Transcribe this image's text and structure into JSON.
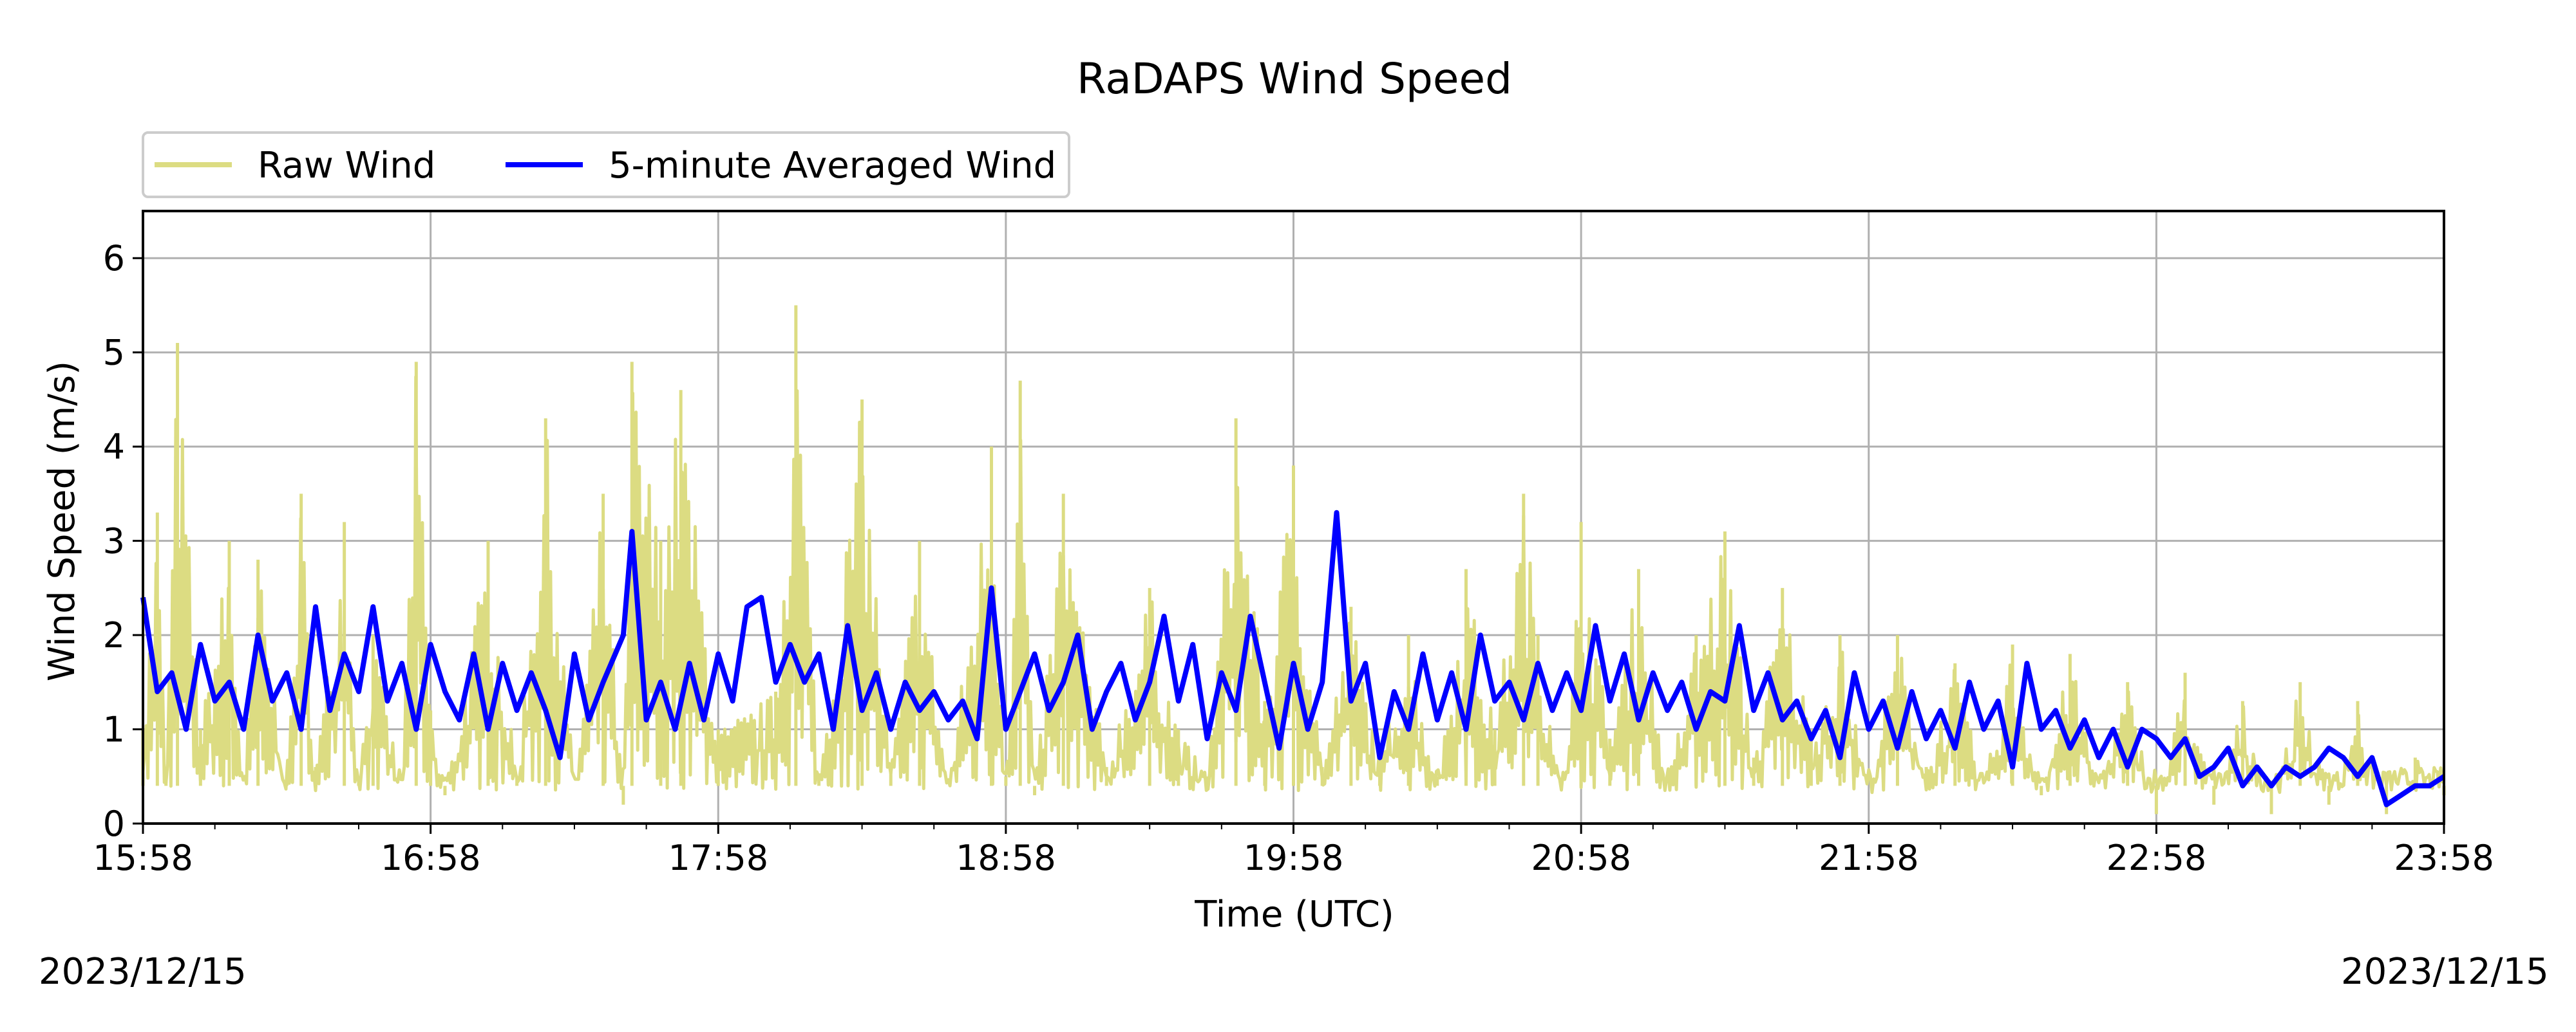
{
  "chart_data": {
    "type": "line",
    "title": "RaDAPS Wind Speed",
    "xlabel": "Time (UTC)",
    "ylabel": "Wind Speed (m/s)",
    "x_tick_labels": [
      "15:58",
      "16:58",
      "17:58",
      "18:58",
      "19:58",
      "20:58",
      "21:58",
      "22:58",
      "23:58"
    ],
    "y_ticks": [
      0,
      1,
      2,
      3,
      4,
      5,
      6
    ],
    "ylim": [
      0,
      6.5
    ],
    "x_range_hours": [
      0,
      8
    ],
    "grid": true,
    "legend_position": "top-left",
    "series": [
      {
        "name": "Raw Wind",
        "color": "#dcdc82",
        "points": [
          [
            0,
            1.0
          ],
          [
            0.05,
            3.3
          ],
          [
            0.08,
            0.5
          ],
          [
            0.12,
            5.1
          ],
          [
            0.2,
            1.0
          ],
          [
            0.3,
            3.0
          ],
          [
            0.35,
            0.4
          ],
          [
            0.4,
            2.8
          ],
          [
            0.5,
            0.5
          ],
          [
            0.55,
            3.5
          ],
          [
            0.6,
            0.6
          ],
          [
            0.7,
            3.2
          ],
          [
            0.75,
            0.5
          ],
          [
            0.8,
            2.0
          ],
          [
            0.9,
            0.4
          ],
          [
            0.95,
            4.9
          ],
          [
            1.0,
            1.2
          ],
          [
            1.05,
            0.3
          ],
          [
            1.2,
            3.0
          ],
          [
            1.3,
            0.5
          ],
          [
            1.4,
            4.3
          ],
          [
            1.5,
            0.4
          ],
          [
            1.6,
            3.5
          ],
          [
            1.67,
            0.2
          ],
          [
            1.7,
            4.9
          ],
          [
            1.8,
            3.0
          ],
          [
            1.87,
            4.6
          ],
          [
            2.0,
            1.0
          ],
          [
            2.2,
            1.4
          ],
          [
            2.27,
            5.5
          ],
          [
            2.35,
            0.5
          ],
          [
            2.5,
            4.5
          ],
          [
            2.6,
            0.6
          ],
          [
            2.7,
            3.0
          ],
          [
            2.8,
            0.4
          ],
          [
            2.95,
            4.0
          ],
          [
            3.0,
            0.5
          ],
          [
            3.05,
            4.7
          ],
          [
            3.1,
            0.3
          ],
          [
            3.2,
            3.5
          ],
          [
            3.35,
            0.6
          ],
          [
            3.5,
            2.5
          ],
          [
            3.6,
            1.0
          ],
          [
            3.7,
            0.5
          ],
          [
            3.8,
            4.3
          ],
          [
            3.9,
            1.3
          ],
          [
            4.0,
            3.8
          ],
          [
            4.1,
            0.6
          ],
          [
            4.2,
            2.3
          ],
          [
            4.3,
            0.7
          ],
          [
            4.4,
            2.0
          ],
          [
            4.5,
            0.5
          ],
          [
            4.6,
            2.7
          ],
          [
            4.7,
            1.0
          ],
          [
            4.8,
            3.5
          ],
          [
            4.85,
            2.0
          ],
          [
            4.95,
            0.4
          ],
          [
            5.0,
            3.2
          ],
          [
            5.1,
            0.9
          ],
          [
            5.2,
            2.7
          ],
          [
            5.3,
            0.4
          ],
          [
            5.4,
            2.0
          ],
          [
            5.5,
            3.1
          ],
          [
            5.6,
            0.7
          ],
          [
            5.7,
            2.5
          ],
          [
            5.8,
            1.0
          ],
          [
            5.9,
            2.0
          ],
          [
            6.0,
            0.4
          ],
          [
            6.1,
            2.0
          ],
          [
            6.2,
            0.6
          ],
          [
            6.3,
            1.7
          ],
          [
            6.4,
            0.4
          ],
          [
            6.5,
            1.9
          ],
          [
            6.6,
            0.3
          ],
          [
            6.7,
            1.8
          ],
          [
            6.8,
            0.4
          ],
          [
            6.9,
            1.5
          ],
          [
            7.0,
            0.1
          ],
          [
            7.1,
            1.6
          ],
          [
            7.2,
            0.2
          ],
          [
            7.3,
            1.3
          ],
          [
            7.4,
            0.1
          ],
          [
            7.5,
            1.5
          ],
          [
            7.6,
            0.2
          ],
          [
            7.7,
            1.3
          ],
          [
            7.8,
            0.1
          ],
          [
            7.9,
            0.7
          ],
          [
            8.0,
            0.3
          ]
        ]
      },
      {
        "name": "5-minute Averaged Wind",
        "color": "#0000ff",
        "points": [
          [
            0,
            2.4
          ],
          [
            0.05,
            1.4
          ],
          [
            0.1,
            1.6
          ],
          [
            0.15,
            1.0
          ],
          [
            0.2,
            1.9
          ],
          [
            0.25,
            1.3
          ],
          [
            0.3,
            1.5
          ],
          [
            0.35,
            1.0
          ],
          [
            0.4,
            2.0
          ],
          [
            0.45,
            1.3
          ],
          [
            0.5,
            1.6
          ],
          [
            0.55,
            1.0
          ],
          [
            0.6,
            2.3
          ],
          [
            0.65,
            1.2
          ],
          [
            0.7,
            1.8
          ],
          [
            0.75,
            1.4
          ],
          [
            0.8,
            2.3
          ],
          [
            0.85,
            1.3
          ],
          [
            0.9,
            1.7
          ],
          [
            0.95,
            1.0
          ],
          [
            1.0,
            1.9
          ],
          [
            1.05,
            1.4
          ],
          [
            1.1,
            1.1
          ],
          [
            1.15,
            1.8
          ],
          [
            1.2,
            1.0
          ],
          [
            1.25,
            1.7
          ],
          [
            1.3,
            1.2
          ],
          [
            1.35,
            1.6
          ],
          [
            1.4,
            1.2
          ],
          [
            1.45,
            0.7
          ],
          [
            1.5,
            1.8
          ],
          [
            1.55,
            1.1
          ],
          [
            1.6,
            1.5
          ],
          [
            1.67,
            2.0
          ],
          [
            1.7,
            3.1
          ],
          [
            1.75,
            1.1
          ],
          [
            1.8,
            1.5
          ],
          [
            1.85,
            1.0
          ],
          [
            1.9,
            1.7
          ],
          [
            1.95,
            1.1
          ],
          [
            2.0,
            1.8
          ],
          [
            2.05,
            1.3
          ],
          [
            2.1,
            2.3
          ],
          [
            2.15,
            2.4
          ],
          [
            2.2,
            1.5
          ],
          [
            2.25,
            1.9
          ],
          [
            2.3,
            1.5
          ],
          [
            2.35,
            1.8
          ],
          [
            2.4,
            1.0
          ],
          [
            2.45,
            2.1
          ],
          [
            2.5,
            1.2
          ],
          [
            2.55,
            1.6
          ],
          [
            2.6,
            1.0
          ],
          [
            2.65,
            1.5
          ],
          [
            2.7,
            1.2
          ],
          [
            2.75,
            1.4
          ],
          [
            2.8,
            1.1
          ],
          [
            2.85,
            1.3
          ],
          [
            2.9,
            0.9
          ],
          [
            2.95,
            2.5
          ],
          [
            3.0,
            1.0
          ],
          [
            3.05,
            1.4
          ],
          [
            3.1,
            1.8
          ],
          [
            3.15,
            1.2
          ],
          [
            3.2,
            1.5
          ],
          [
            3.25,
            2.0
          ],
          [
            3.3,
            1.0
          ],
          [
            3.35,
            1.4
          ],
          [
            3.4,
            1.7
          ],
          [
            3.45,
            1.1
          ],
          [
            3.5,
            1.5
          ],
          [
            3.55,
            2.2
          ],
          [
            3.6,
            1.3
          ],
          [
            3.65,
            1.9
          ],
          [
            3.7,
            0.9
          ],
          [
            3.75,
            1.6
          ],
          [
            3.8,
            1.2
          ],
          [
            3.85,
            2.2
          ],
          [
            3.9,
            1.5
          ],
          [
            3.95,
            0.8
          ],
          [
            4.0,
            1.7
          ],
          [
            4.05,
            1.0
          ],
          [
            4.1,
            1.5
          ],
          [
            4.15,
            3.3
          ],
          [
            4.2,
            1.3
          ],
          [
            4.25,
            1.7
          ],
          [
            4.3,
            0.7
          ],
          [
            4.35,
            1.4
          ],
          [
            4.4,
            1.0
          ],
          [
            4.45,
            1.8
          ],
          [
            4.5,
            1.1
          ],
          [
            4.55,
            1.6
          ],
          [
            4.6,
            1.0
          ],
          [
            4.65,
            2.0
          ],
          [
            4.7,
            1.3
          ],
          [
            4.75,
            1.5
          ],
          [
            4.8,
            1.1
          ],
          [
            4.85,
            1.7
          ],
          [
            4.9,
            1.2
          ],
          [
            4.95,
            1.6
          ],
          [
            5.0,
            1.2
          ],
          [
            5.05,
            2.1
          ],
          [
            5.1,
            1.3
          ],
          [
            5.15,
            1.8
          ],
          [
            5.2,
            1.1
          ],
          [
            5.25,
            1.6
          ],
          [
            5.3,
            1.2
          ],
          [
            5.35,
            1.5
          ],
          [
            5.4,
            1.0
          ],
          [
            5.45,
            1.4
          ],
          [
            5.5,
            1.3
          ],
          [
            5.55,
            2.1
          ],
          [
            5.6,
            1.2
          ],
          [
            5.65,
            1.6
          ],
          [
            5.7,
            1.1
          ],
          [
            5.75,
            1.3
          ],
          [
            5.8,
            0.9
          ],
          [
            5.85,
            1.2
          ],
          [
            5.9,
            0.7
          ],
          [
            5.95,
            1.6
          ],
          [
            6.0,
            1.0
          ],
          [
            6.05,
            1.3
          ],
          [
            6.1,
            0.8
          ],
          [
            6.15,
            1.4
          ],
          [
            6.2,
            0.9
          ],
          [
            6.25,
            1.2
          ],
          [
            6.3,
            0.8
          ],
          [
            6.35,
            1.5
          ],
          [
            6.4,
            1.0
          ],
          [
            6.45,
            1.3
          ],
          [
            6.5,
            0.6
          ],
          [
            6.55,
            1.7
          ],
          [
            6.6,
            1.0
          ],
          [
            6.65,
            1.2
          ],
          [
            6.7,
            0.8
          ],
          [
            6.75,
            1.1
          ],
          [
            6.8,
            0.7
          ],
          [
            6.85,
            1.0
          ],
          [
            6.9,
            0.6
          ],
          [
            6.95,
            1.0
          ],
          [
            7.0,
            0.9
          ],
          [
            7.05,
            0.7
          ],
          [
            7.1,
            0.9
          ],
          [
            7.15,
            0.5
          ],
          [
            7.2,
            0.6
          ],
          [
            7.25,
            0.8
          ],
          [
            7.3,
            0.4
          ],
          [
            7.35,
            0.6
          ],
          [
            7.4,
            0.4
          ],
          [
            7.45,
            0.6
          ],
          [
            7.5,
            0.5
          ],
          [
            7.55,
            0.6
          ],
          [
            7.6,
            0.8
          ],
          [
            7.65,
            0.7
          ],
          [
            7.7,
            0.5
          ],
          [
            7.75,
            0.7
          ],
          [
            7.8,
            0.2
          ],
          [
            7.85,
            0.3
          ],
          [
            7.9,
            0.4
          ],
          [
            7.95,
            0.4
          ],
          [
            8.0,
            0.5
          ]
        ]
      }
    ]
  },
  "footer": {
    "date_left": "2023/12/15",
    "date_right": "2023/12/15"
  }
}
